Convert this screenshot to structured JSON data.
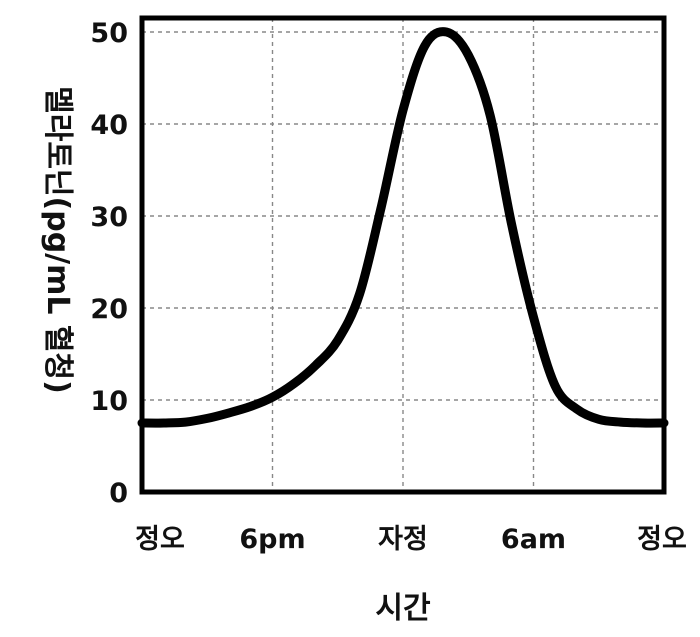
{
  "chart_data": {
    "type": "line",
    "xlabel": "시간",
    "ylabel": "멜라토닌(pg/mL 혈청)",
    "x_ticks": [
      "정오",
      "6pm",
      "자정",
      "6am",
      "정오"
    ],
    "x_tick_hours": [
      0,
      6,
      12,
      18,
      24
    ],
    "xlim": [
      0,
      24
    ],
    "ylim": [
      0,
      50
    ],
    "y_ticks": [
      0,
      10,
      20,
      30,
      40,
      50
    ],
    "grid": true,
    "series": [
      {
        "x": [
          0,
          1,
          2,
          3,
          4,
          5,
          6,
          7,
          8,
          9,
          10,
          11,
          12,
          13,
          14,
          15,
          16,
          17,
          18,
          19,
          20,
          21,
          22,
          23,
          24
        ],
        "values": [
          7.5,
          7.5,
          7.6,
          8.0,
          8.6,
          9.3,
          10.3,
          11.8,
          13.8,
          16.5,
          21.5,
          31,
          41.5,
          48.5,
          50,
          47.5,
          41,
          29,
          19,
          11.5,
          9.0,
          7.9,
          7.6,
          7.5,
          7.5
        ]
      }
    ],
    "colors": {
      "line": "#000000",
      "frame": "#000000",
      "grid": "#888888"
    }
  }
}
